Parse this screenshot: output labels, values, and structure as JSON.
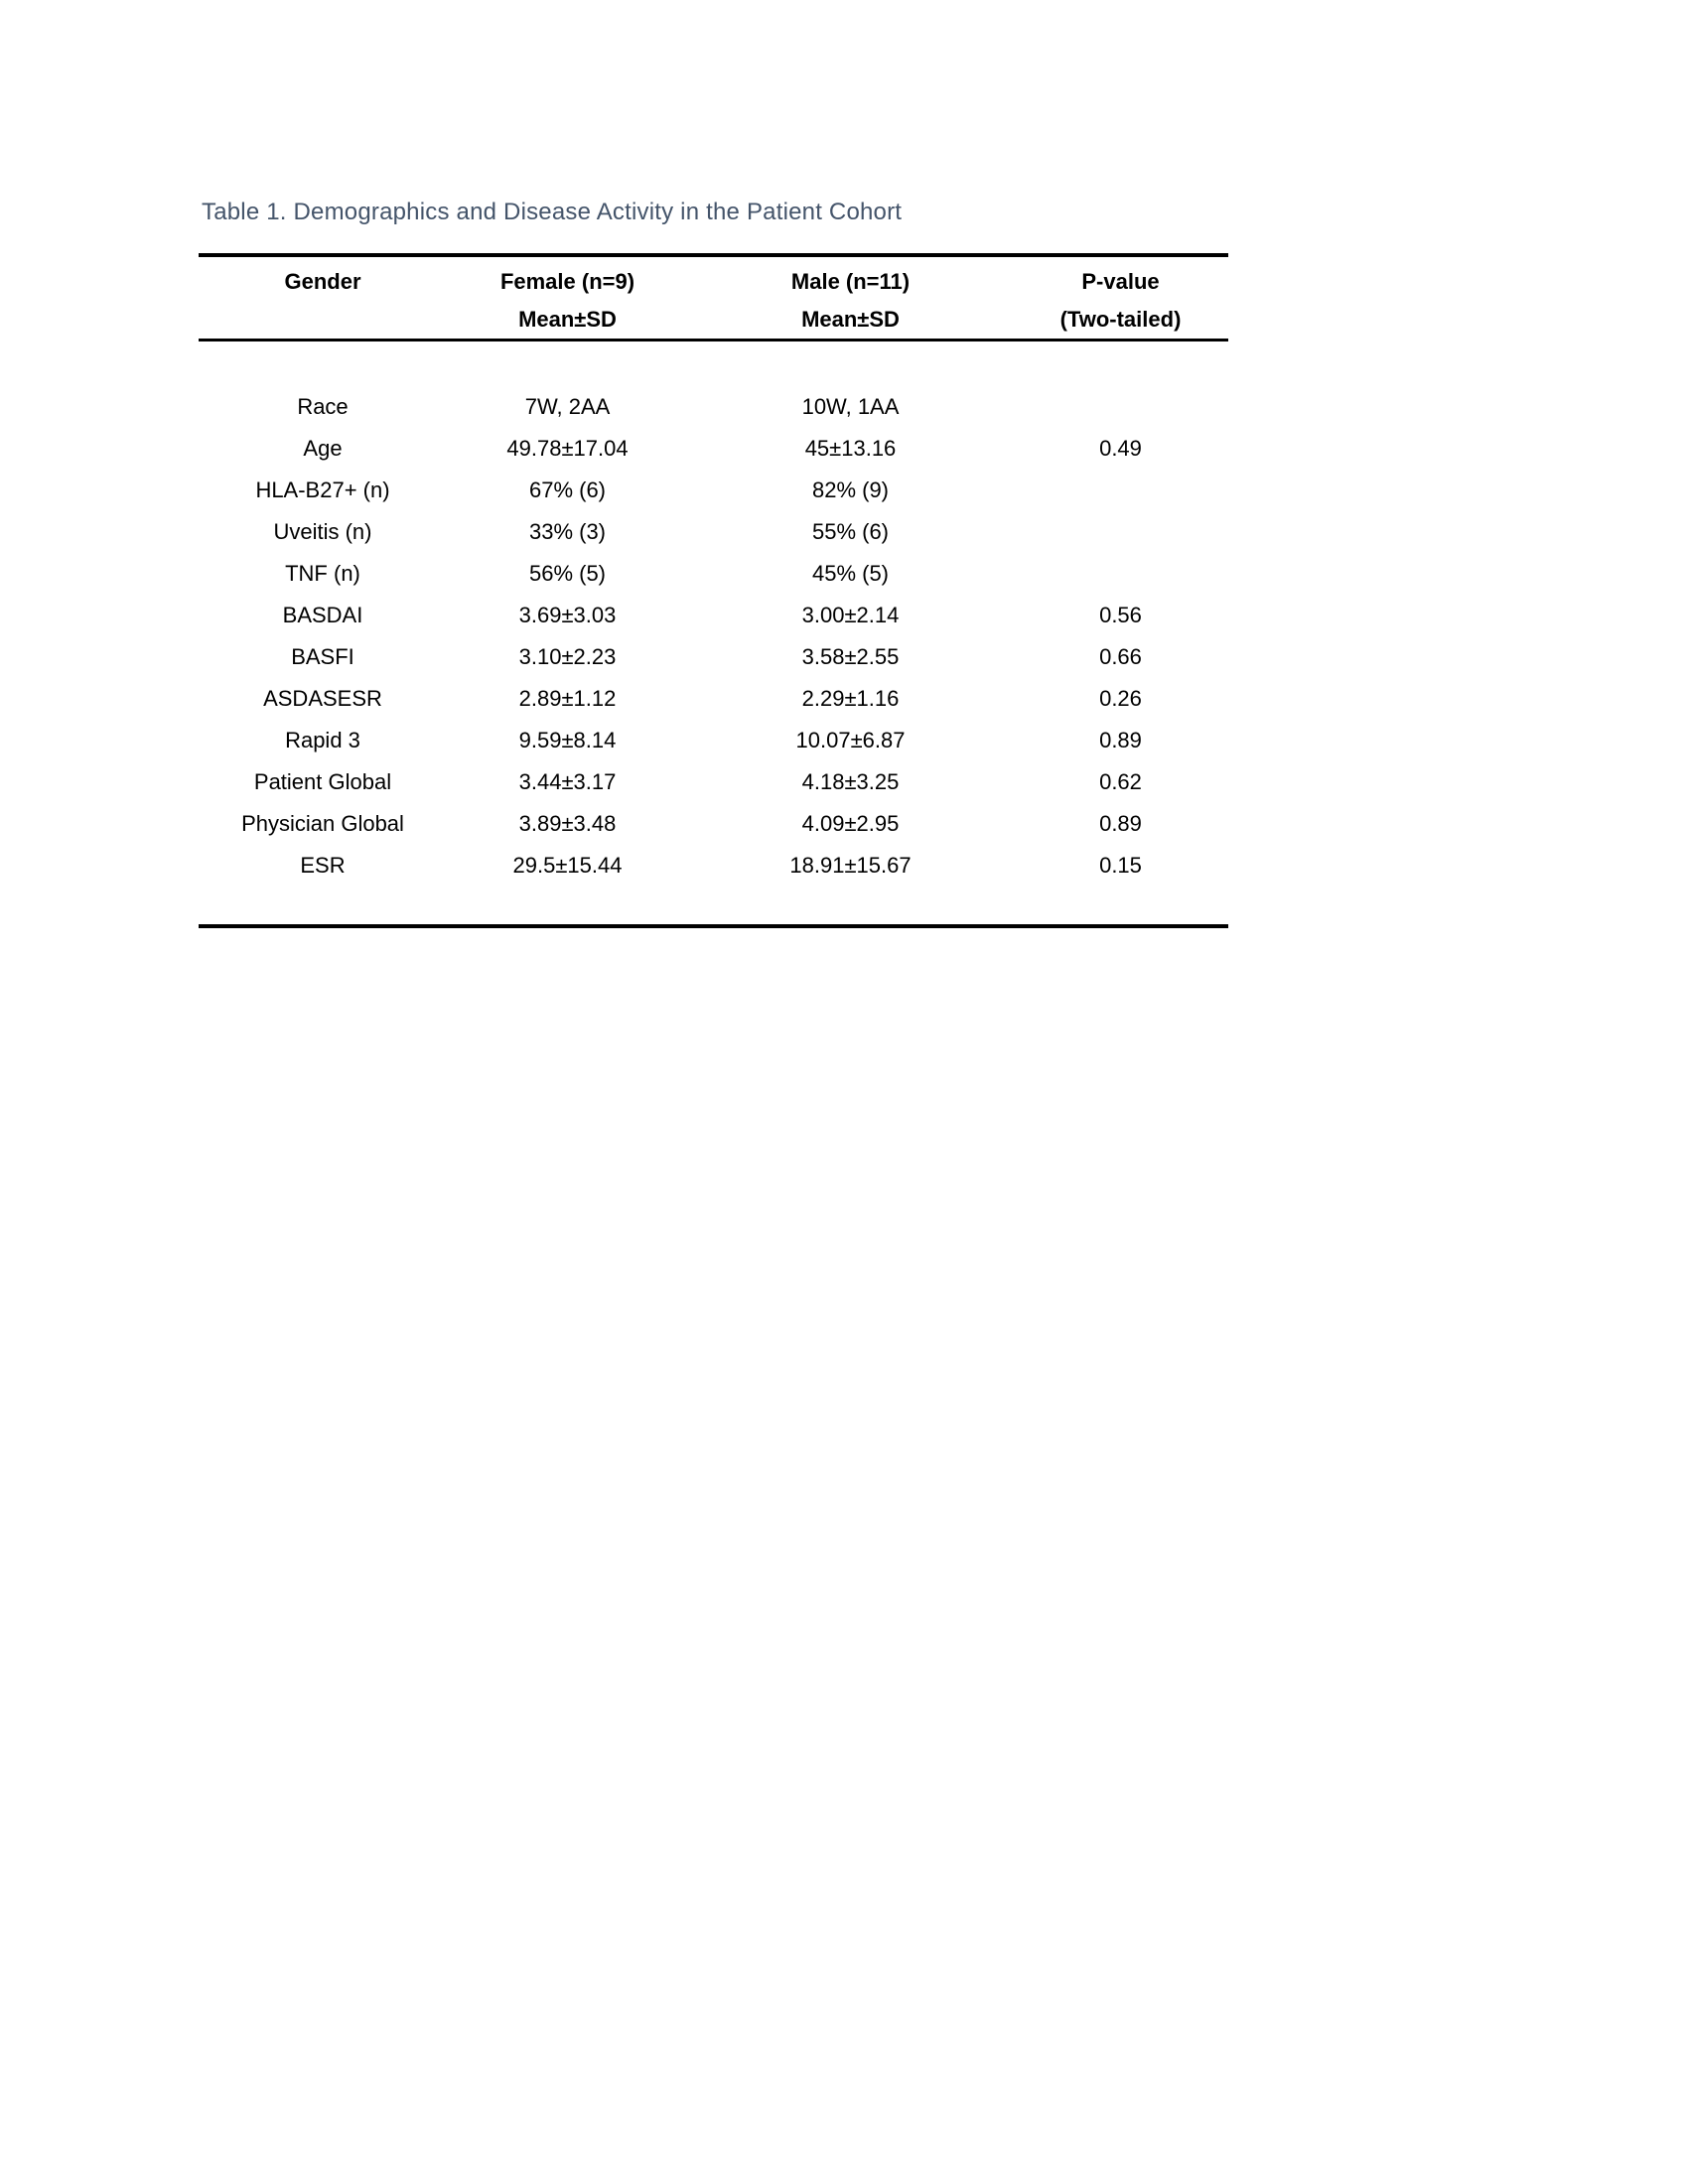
{
  "document": {
    "caption": "Table 1. Demographics and Disease Activity in the Patient Cohort"
  },
  "colors": {
    "caption_text": "#44546A",
    "body_text": "#000000",
    "table_rule": "#000000",
    "page_background": "#ffffff"
  },
  "table": {
    "header": {
      "col1_line1": "Gender",
      "col1_line2": "",
      "col2_line1": "Female (n=9)",
      "col2_line2": "Mean±SD",
      "col3_line1": "Male (n=11)",
      "col3_line2": "Mean±SD",
      "col4_line1": "P-value",
      "col4_line2": "(Two-tailed)"
    },
    "rows": [
      {
        "cells": [
          "Race",
          "7W, 2AA",
          "10W, 1AA",
          ""
        ]
      },
      {
        "cells": [
          "Age",
          "49.78±17.04",
          "45±13.16",
          "0.49"
        ]
      },
      {
        "cells": [
          "HLA-B27+ (n)",
          "67% (6)",
          "82% (9)",
          ""
        ]
      },
      {
        "cells": [
          "Uveitis (n)",
          "33% (3)",
          "55% (6)",
          ""
        ]
      },
      {
        "cells": [
          "TNF (n)",
          "56% (5)",
          "45% (5)",
          ""
        ]
      },
      {
        "cells": [
          "BASDAI",
          "3.69±3.03",
          "3.00±2.14",
          "0.56"
        ]
      },
      {
        "cells": [
          "BASFI",
          "3.10±2.23",
          "3.58±2.55",
          "0.66"
        ]
      },
      {
        "cells": [
          "ASDASESR",
          "2.89±1.12",
          "2.29±1.16",
          "0.26"
        ]
      },
      {
        "cells": [
          "Rapid 3",
          "9.59±8.14",
          "10.07±6.87",
          "0.89"
        ]
      },
      {
        "cells": [
          "Patient Global",
          "3.44±3.17",
          "4.18±3.25",
          "0.62"
        ]
      },
      {
        "cells": [
          "Physician Global",
          "3.89±3.48",
          "4.09±2.95",
          "0.89"
        ]
      },
      {
        "cells": [
          "ESR",
          "29.5±15.44",
          "18.91±15.67",
          "0.15"
        ]
      }
    ]
  }
}
